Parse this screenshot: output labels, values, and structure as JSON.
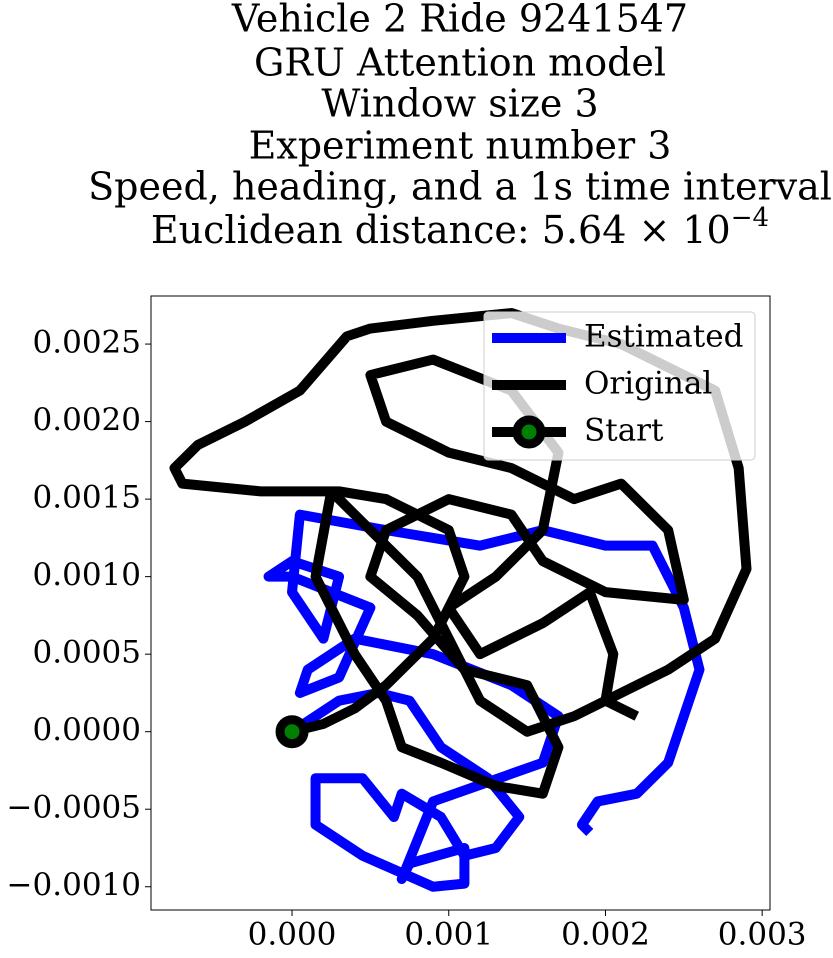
{
  "chart_data": {
    "type": "line",
    "title": [
      "Vehicle 2 Ride 9241547",
      "GRU Attention model",
      "Window size 3",
      "Experiment number 3",
      "Speed, heading, and a 1s time interval"
    ],
    "title_math": {
      "text": "Euclidean distance: 5.64 × 10",
      "superscript": "−4"
    },
    "xlim": [
      -0.0009,
      0.00305
    ],
    "ylim": [
      -0.00115,
      0.00281
    ],
    "xticks": [
      {
        "value": 0,
        "label": "0.000"
      },
      {
        "value": 0.001,
        "label": "0.001"
      },
      {
        "value": 0.002,
        "label": "0.002"
      },
      {
        "value": 0.003,
        "label": "0.003"
      }
    ],
    "yticks": [
      {
        "value": -0.001,
        "label": "−0.0010"
      },
      {
        "value": -0.0005,
        "label": "−0.0005"
      },
      {
        "value": 0,
        "label": "0.0000"
      },
      {
        "value": 0.0005,
        "label": "0.0005"
      },
      {
        "value": 0.001,
        "label": "0.0010"
      },
      {
        "value": 0.0015,
        "label": "0.0015"
      },
      {
        "value": 0.002,
        "label": "0.0020"
      },
      {
        "value": 0.0025,
        "label": "0.0025"
      }
    ],
    "legend": "upper right",
    "series": [
      {
        "name": "Estimated",
        "color": "#0000ff",
        "x": [
          0,
          0.0003,
          0.00055,
          0.00075,
          0.00095,
          0.00125,
          0.00145,
          0.0013,
          0.0011,
          0.00095,
          0.0007,
          0.00065,
          0.00045,
          0.00015,
          0.00015,
          0.00045,
          0.0009,
          0.0011,
          0.0011,
          0.00075,
          0.0007,
          0.0009,
          0.0016,
          0.0017,
          0.0014,
          0.0009,
          0.0004,
          0.0001,
          5e-05,
          0.0003,
          0.0005,
          0,
          -0.00015,
          0,
          0.0003,
          0.0002,
          0,
          5e-05,
          0.0006,
          0.0012,
          0.0016,
          0.002,
          0.0023,
          0.0025,
          0.0026,
          0.0024,
          0.0022,
          0.00195,
          0.00185,
          0.0019
        ],
        "values": [
          0,
          0.0002,
          0.00025,
          0.0002,
          -0.0001,
          -0.0003,
          -0.00055,
          -0.00075,
          -0.0008,
          -0.00055,
          -0.0004,
          -0.00055,
          -0.0003,
          -0.0003,
          -0.0006,
          -0.0008,
          -0.001,
          -0.00098,
          -0.00075,
          -0.00085,
          -0.00095,
          -0.00045,
          -0.0002,
          0.0001,
          0.0003,
          0.0005,
          0.0006,
          0.0004,
          0.00025,
          0.00035,
          0.0008,
          0.001,
          0.001,
          0.0011,
          0.001,
          0.0006,
          0.0009,
          0.0014,
          0.0013,
          0.0012,
          0.0013,
          0.0012,
          0.0012,
          0.0008,
          0.0004,
          -0.0002,
          -0.0004,
          -0.00045,
          -0.0006,
          -0.00065
        ]
      },
      {
        "name": "Original",
        "color": "#000000",
        "x": [
          0,
          0.0002,
          0.0004,
          0.0006,
          0.0009,
          0.0011,
          0.001,
          0.0006,
          0.0003,
          -0.0002,
          -0.0007,
          -0.00075,
          -0.0006,
          -0.0003,
          5e-05,
          0.00035,
          0.0005,
          0.0009,
          0.0014,
          0.0017,
          0.0021,
          0.0027,
          0.00285,
          0.0029,
          0.0027,
          0.0024,
          0.0022,
          0.0018,
          0.0015,
          0.0012,
          0.001,
          0.0008,
          0.0005,
          0.00025,
          0.00015,
          0.0004,
          0.0006,
          0.0007,
          0.00095,
          0.0013,
          0.0016,
          0.0017,
          0.0015,
          0.0011,
          0.0008,
          0.0005,
          0.0006,
          0.001,
          0.0014,
          0.0016,
          0.002,
          0.0025,
          0.0024,
          0.0021,
          0.0018,
          0.0014,
          0.001,
          0.0006,
          0.0005,
          0.0009,
          0.0014,
          0.0017,
          0.0016,
          0.0013,
          0.001,
          0.0012,
          0.0016,
          0.0019,
          0.00205,
          0.002,
          0.0022
        ],
        "values": [
          0,
          5e-05,
          0.00015,
          0.0003,
          0.0006,
          0.001,
          0.0013,
          0.0015,
          0.00155,
          0.00155,
          0.0016,
          0.0017,
          0.00185,
          0.002,
          0.0022,
          0.00255,
          0.0026,
          0.00265,
          0.0027,
          0.0026,
          0.0025,
          0.0022,
          0.0017,
          0.00105,
          0.0006,
          0.0004,
          0.0003,
          0.0001,
          0,
          0.0002,
          0.0006,
          0.001,
          0.0013,
          0.00155,
          0.001,
          0.0005,
          0.0002,
          -0.0001,
          -0.0002,
          -0.00035,
          -0.0004,
          -0.0001,
          0.0003,
          0.0004,
          0.00075,
          0.001,
          0.0013,
          0.0015,
          0.0014,
          0.0011,
          0.0009,
          0.00085,
          0.0013,
          0.0016,
          0.0015,
          0.0017,
          0.0018,
          0.002,
          0.0023,
          0.0024,
          0.0022,
          0.0018,
          0.0013,
          0.001,
          0.0008,
          0.0005,
          0.0007,
          0.0009,
          0.0005,
          0.0002,
          0.0001
        ]
      },
      {
        "name": "Start",
        "color": "#000000",
        "marker_color": "#008000",
        "x": [
          0
        ],
        "values": [
          0
        ]
      }
    ]
  }
}
